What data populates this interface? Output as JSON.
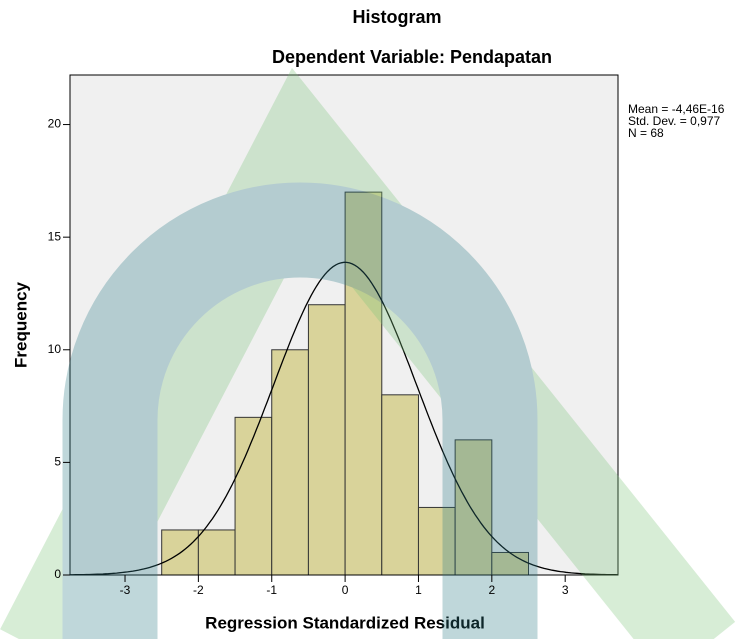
{
  "chart_data": {
    "type": "histogram",
    "title": "Histogram",
    "subtitle": "Dependent Variable: Pendapatan",
    "x_label": "Regression Standardized Residual",
    "y_label": "Frequency",
    "bins": [
      -2.5,
      -2,
      -1.5,
      -1,
      -0.5,
      0,
      0.5,
      1,
      1.5,
      2,
      2.5
    ],
    "values": [
      2,
      2,
      7,
      10,
      12,
      17,
      8,
      3,
      6,
      1
    ],
    "color": "#d9d39a",
    "edge_color": "#333333",
    "background": "#f0f0f0",
    "xlim": [
      -3.75,
      3.72
    ],
    "ylim": [
      0,
      22.2
    ],
    "xticks": [
      -3,
      -2,
      -1,
      0,
      1,
      2,
      3
    ],
    "yticks": [
      0,
      5,
      10,
      15,
      20
    ],
    "stats": [
      "Mean = -4,46E-16",
      "Std. Dev. = 0,977",
      "N = 68"
    ],
    "normal_curve": {
      "mean": -4.46e-16,
      "sd": 0.977,
      "n": 68
    }
  }
}
